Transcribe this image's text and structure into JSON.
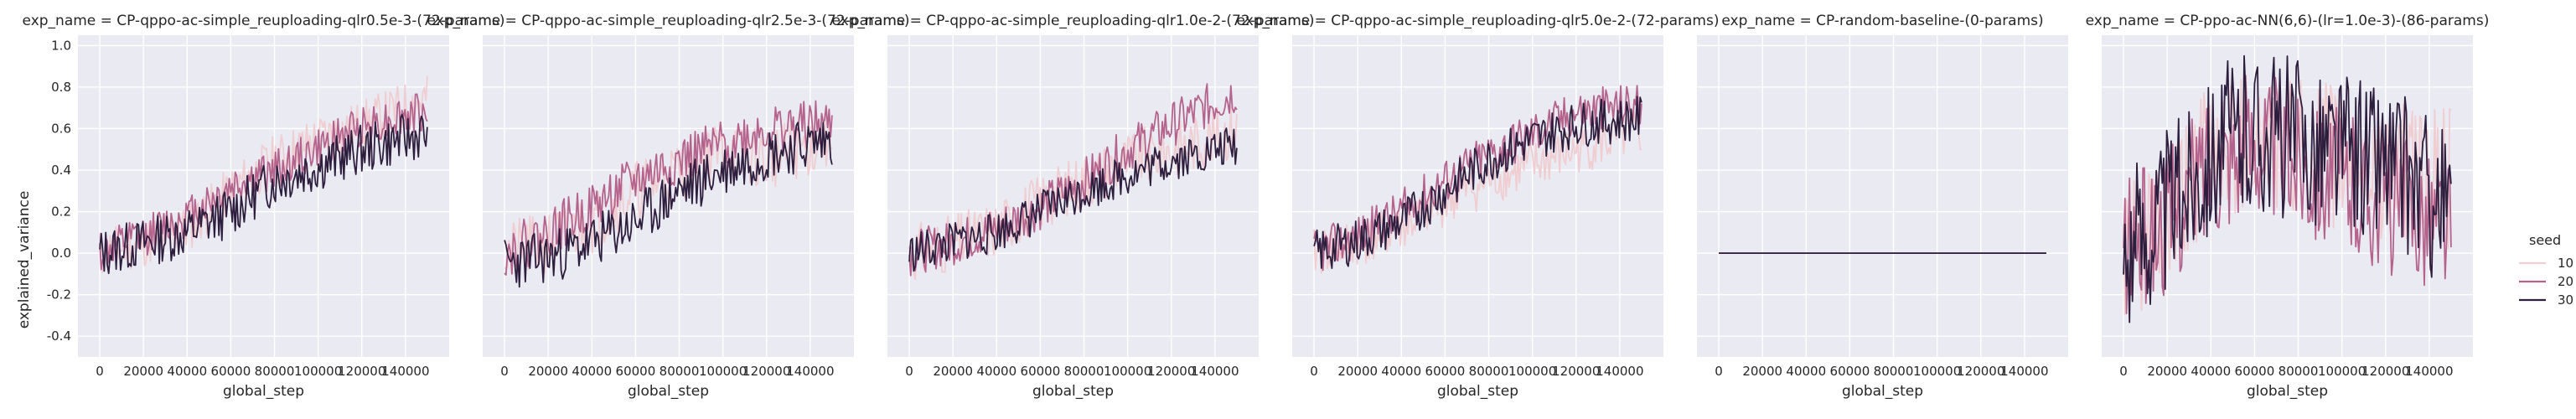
{
  "figure": {
    "ylabel": "explained_variance",
    "xlabel": "global_step"
  },
  "legend": {
    "title": "seed",
    "placement": "center-right",
    "entries": [
      {
        "label": "10",
        "color": "#efcdd1"
      },
      {
        "label": "20",
        "color": "#b4638c"
      },
      {
        "label": "30",
        "color": "#2d1e3e"
      }
    ]
  },
  "chart_data": [
    {
      "type": "line",
      "title": "exp_name = CP-qppo-ac-simple_reuploading-qlr0.5e-3-(72-params)",
      "xlabel": "global_step",
      "ylabel": "explained_variance",
      "xlim": [
        -10000,
        160000
      ],
      "ylim": [
        -0.5,
        1.05
      ],
      "xticks": [
        0,
        20000,
        40000,
        60000,
        80000,
        100000,
        120000,
        140000
      ],
      "yticks": [
        -0.4,
        -0.2,
        0.0,
        0.2,
        0.4,
        0.6,
        0.8,
        1.0
      ],
      "grid": true,
      "series": [
        {
          "name": "10",
          "color": "#efcdd1",
          "trend": [
            [
              0,
              0.0
            ],
            [
              20000,
              0.05
            ],
            [
              40000,
              0.12
            ],
            [
              60000,
              0.3
            ],
            [
              80000,
              0.45
            ],
            [
              100000,
              0.55
            ],
            [
              120000,
              0.62
            ],
            [
              150000,
              0.75
            ]
          ],
          "noise": 0.12,
          "seed": 11
        },
        {
          "name": "20",
          "color": "#b4638c",
          "trend": [
            [
              0,
              0.0
            ],
            [
              20000,
              0.08
            ],
            [
              40000,
              0.18
            ],
            [
              60000,
              0.32
            ],
            [
              80000,
              0.4
            ],
            [
              100000,
              0.5
            ],
            [
              120000,
              0.62
            ],
            [
              150000,
              0.68
            ]
          ],
          "noise": 0.1,
          "seed": 12
        },
        {
          "name": "30",
          "color": "#2d1e3e",
          "trend": [
            [
              0,
              0.0
            ],
            [
              20000,
              0.05
            ],
            [
              40000,
              0.1
            ],
            [
              60000,
              0.2
            ],
            [
              80000,
              0.35
            ],
            [
              100000,
              0.42
            ],
            [
              120000,
              0.5
            ],
            [
              150000,
              0.58
            ]
          ],
          "noise": 0.12,
          "seed": 13
        }
      ]
    },
    {
      "type": "line",
      "title": "exp_name = CP-qppo-ac-simple_reuploading-qlr2.5e-3-(72-params)",
      "xlabel": "global_step",
      "ylabel": "explained_variance",
      "xlim": [
        -10000,
        160000
      ],
      "ylim": [
        -0.5,
        1.05
      ],
      "xticks": [
        0,
        20000,
        40000,
        60000,
        80000,
        100000,
        120000,
        140000
      ],
      "yticks": [
        -0.4,
        -0.2,
        0.0,
        0.2,
        0.4,
        0.6,
        0.8,
        1.0
      ],
      "grid": true,
      "series": [
        {
          "name": "10",
          "color": "#efcdd1",
          "trend": [
            [
              0,
              0.0
            ],
            [
              20000,
              0.05
            ],
            [
              40000,
              0.15
            ],
            [
              60000,
              0.3
            ],
            [
              80000,
              0.4
            ],
            [
              100000,
              0.5
            ],
            [
              120000,
              0.45
            ],
            [
              150000,
              0.55
            ]
          ],
          "noise": 0.15,
          "seed": 21
        },
        {
          "name": "20",
          "color": "#b4638c",
          "trend": [
            [
              0,
              0.0
            ],
            [
              20000,
              0.1
            ],
            [
              40000,
              0.22
            ],
            [
              60000,
              0.35
            ],
            [
              80000,
              0.45
            ],
            [
              100000,
              0.52
            ],
            [
              120000,
              0.6
            ],
            [
              150000,
              0.62
            ]
          ],
          "noise": 0.12,
          "seed": 22
        },
        {
          "name": "30",
          "color": "#2d1e3e",
          "trend": [
            [
              0,
              -0.05
            ],
            [
              20000,
              -0.02
            ],
            [
              40000,
              0.05
            ],
            [
              60000,
              0.15
            ],
            [
              80000,
              0.3
            ],
            [
              100000,
              0.4
            ],
            [
              120000,
              0.48
            ],
            [
              150000,
              0.55
            ]
          ],
          "noise": 0.13,
          "seed": 23
        }
      ]
    },
    {
      "type": "line",
      "title": "exp_name = CP-qppo-ac-simple_reuploading-qlr1.0e-2-(72-params)",
      "xlabel": "global_step",
      "ylabel": "explained_variance",
      "xlim": [
        -10000,
        160000
      ],
      "ylim": [
        -0.5,
        1.05
      ],
      "xticks": [
        0,
        20000,
        40000,
        60000,
        80000,
        100000,
        120000,
        140000
      ],
      "yticks": [
        -0.4,
        -0.2,
        0.0,
        0.2,
        0.4,
        0.6,
        0.8,
        1.0
      ],
      "grid": true,
      "series": [
        {
          "name": "10",
          "color": "#efcdd1",
          "trend": [
            [
              0,
              0.0
            ],
            [
              20000,
              0.05
            ],
            [
              40000,
              0.12
            ],
            [
              60000,
              0.25
            ],
            [
              80000,
              0.35
            ],
            [
              100000,
              0.45
            ],
            [
              120000,
              0.5
            ],
            [
              150000,
              0.6
            ]
          ],
          "noise": 0.14,
          "seed": 31
        },
        {
          "name": "20",
          "color": "#b4638c",
          "trend": [
            [
              0,
              0.0
            ],
            [
              20000,
              0.05
            ],
            [
              40000,
              0.12
            ],
            [
              60000,
              0.22
            ],
            [
              80000,
              0.35
            ],
            [
              100000,
              0.5
            ],
            [
              120000,
              0.62
            ],
            [
              150000,
              0.78
            ]
          ],
          "noise": 0.11,
          "seed": 32
        },
        {
          "name": "30",
          "color": "#2d1e3e",
          "trend": [
            [
              0,
              0.0
            ],
            [
              20000,
              0.05
            ],
            [
              40000,
              0.1
            ],
            [
              60000,
              0.2
            ],
            [
              80000,
              0.3
            ],
            [
              100000,
              0.38
            ],
            [
              120000,
              0.45
            ],
            [
              150000,
              0.52
            ]
          ],
          "noise": 0.1,
          "seed": 33
        }
      ]
    },
    {
      "type": "line",
      "title": "exp_name = CP-qppo-ac-simple_reuploading-qlr5.0e-2-(72-params)",
      "xlabel": "global_step",
      "ylabel": "explained_variance",
      "xlim": [
        -10000,
        160000
      ],
      "ylim": [
        -0.5,
        1.05
      ],
      "xticks": [
        0,
        20000,
        40000,
        60000,
        80000,
        100000,
        120000,
        140000
      ],
      "yticks": [
        -0.4,
        -0.2,
        0.0,
        0.2,
        0.4,
        0.6,
        0.8,
        1.0
      ],
      "grid": true,
      "series": [
        {
          "name": "10",
          "color": "#efcdd1",
          "trend": [
            [
              0,
              0.0
            ],
            [
              20000,
              0.05
            ],
            [
              40000,
              0.12
            ],
            [
              60000,
              0.25
            ],
            [
              80000,
              0.35
            ],
            [
              100000,
              0.42
            ],
            [
              120000,
              0.5
            ],
            [
              150000,
              0.58
            ]
          ],
          "noise": 0.12,
          "seed": 41
        },
        {
          "name": "20",
          "color": "#b4638c",
          "trend": [
            [
              0,
              0.0
            ],
            [
              20000,
              0.08
            ],
            [
              40000,
              0.2
            ],
            [
              60000,
              0.35
            ],
            [
              80000,
              0.48
            ],
            [
              100000,
              0.58
            ],
            [
              120000,
              0.68
            ],
            [
              150000,
              0.72
            ]
          ],
          "noise": 0.11,
          "seed": 42
        },
        {
          "name": "30",
          "color": "#2d1e3e",
          "trend": [
            [
              0,
              0.0
            ],
            [
              20000,
              0.06
            ],
            [
              40000,
              0.15
            ],
            [
              60000,
              0.3
            ],
            [
              80000,
              0.45
            ],
            [
              100000,
              0.55
            ],
            [
              120000,
              0.62
            ],
            [
              150000,
              0.65
            ]
          ],
          "noise": 0.11,
          "seed": 43
        }
      ]
    },
    {
      "type": "line",
      "title": "exp_name = CP-random-baseline-(0-params)",
      "xlabel": "global_step",
      "ylabel": "explained_variance",
      "xlim": [
        -10000,
        160000
      ],
      "ylim": [
        -0.5,
        1.05
      ],
      "xticks": [
        0,
        20000,
        40000,
        60000,
        80000,
        100000,
        120000,
        140000
      ],
      "yticks": [
        -0.4,
        -0.2,
        0.0,
        0.2,
        0.4,
        0.6,
        0.8,
        1.0
      ],
      "grid": true,
      "series": [
        {
          "name": "10",
          "color": "#efcdd1",
          "trend": [
            [
              0,
              0.0
            ],
            [
              150000,
              0.0
            ]
          ],
          "noise": 0.0,
          "seed": 51
        },
        {
          "name": "20",
          "color": "#b4638c",
          "trend": [
            [
              0,
              0.0
            ],
            [
              150000,
              0.0
            ]
          ],
          "noise": 0.0,
          "seed": 52
        },
        {
          "name": "30",
          "color": "#2d1e3e",
          "trend": [
            [
              0,
              0.0
            ],
            [
              150000,
              0.0
            ]
          ],
          "noise": 0.0,
          "seed": 53
        }
      ]
    },
    {
      "type": "line",
      "title": "exp_name = CP-ppo-ac-NN(6,6)-(lr=1.0e-3)-(86-params)",
      "xlabel": "global_step",
      "ylabel": "explained_variance",
      "xlim": [
        -10000,
        160000
      ],
      "ylim": [
        -0.5,
        1.05
      ],
      "xticks": [
        0,
        20000,
        40000,
        60000,
        80000,
        100000,
        120000,
        140000
      ],
      "yticks": [
        -0.4,
        -0.2,
        0.0,
        0.2,
        0.4,
        0.6,
        0.8,
        1.0
      ],
      "grid": true,
      "series": [
        {
          "name": "10",
          "color": "#efcdd1",
          "trend": [
            [
              0,
              0.0
            ],
            [
              20000,
              0.1
            ],
            [
              40000,
              0.5
            ],
            [
              60000,
              0.55
            ],
            [
              80000,
              0.5
            ],
            [
              100000,
              0.45
            ],
            [
              120000,
              0.4
            ],
            [
              150000,
              0.35
            ]
          ],
          "noise": 0.35,
          "seed": 61
        },
        {
          "name": "20",
          "color": "#b4638c",
          "trend": [
            [
              0,
              0.0
            ],
            [
              20000,
              0.15
            ],
            [
              40000,
              0.45
            ],
            [
              60000,
              0.55
            ],
            [
              80000,
              0.45
            ],
            [
              100000,
              0.35
            ],
            [
              120000,
              0.25
            ],
            [
              150000,
              0.15
            ]
          ],
          "noise": 0.35,
          "seed": 62
        },
        {
          "name": "30",
          "color": "#2d1e3e",
          "trend": [
            [
              0,
              0.0
            ],
            [
              20000,
              0.2
            ],
            [
              40000,
              0.5
            ],
            [
              60000,
              0.6
            ],
            [
              80000,
              0.55
            ],
            [
              100000,
              0.5
            ],
            [
              120000,
              0.45
            ],
            [
              150000,
              0.2
            ]
          ],
          "noise": 0.4,
          "seed": 63
        }
      ]
    }
  ]
}
